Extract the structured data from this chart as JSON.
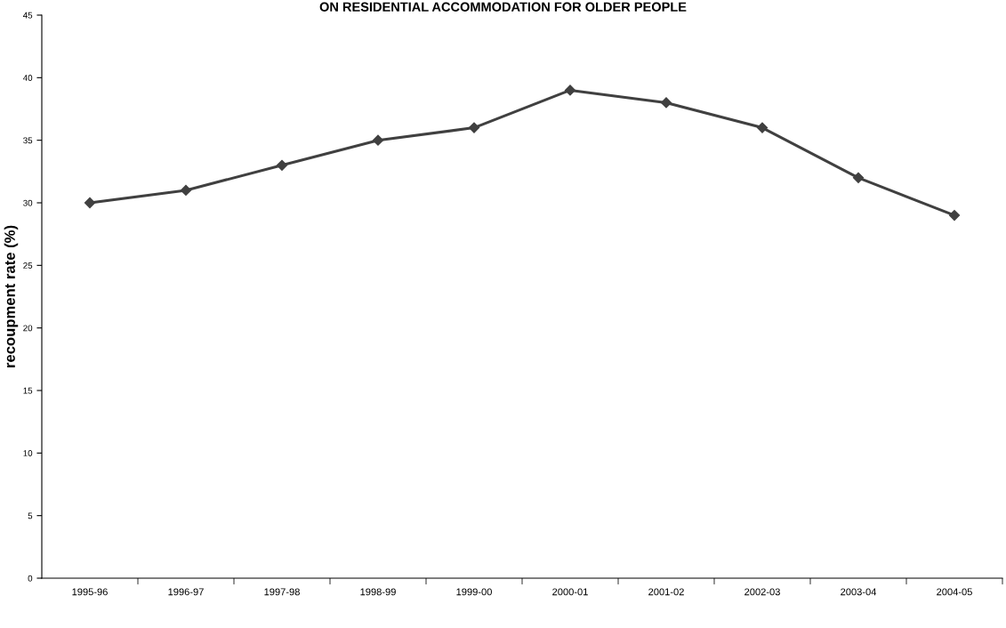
{
  "chart_data": {
    "type": "line",
    "title": "ON RESIDENTIAL ACCOMMODATION FOR OLDER PEOPLE",
    "ylabel": "recoupment rate (%)",
    "categories": [
      "1995-96",
      "1996-97",
      "1997-98",
      "1998-99",
      "1999-00",
      "2000-01",
      "2001-02",
      "2002-03",
      "2003-04",
      "2004-05"
    ],
    "series": [
      {
        "color": "#404040",
        "values": [
          30,
          31,
          33,
          35,
          36,
          39,
          38,
          36,
          32,
          29
        ]
      }
    ],
    "ylim": [
      0,
      45
    ],
    "yticks": [
      0,
      5,
      10,
      15,
      20,
      25,
      30,
      35,
      40,
      45
    ],
    "grid": false,
    "legend": false,
    "marker": "diamond",
    "line_style": "solid"
  }
}
